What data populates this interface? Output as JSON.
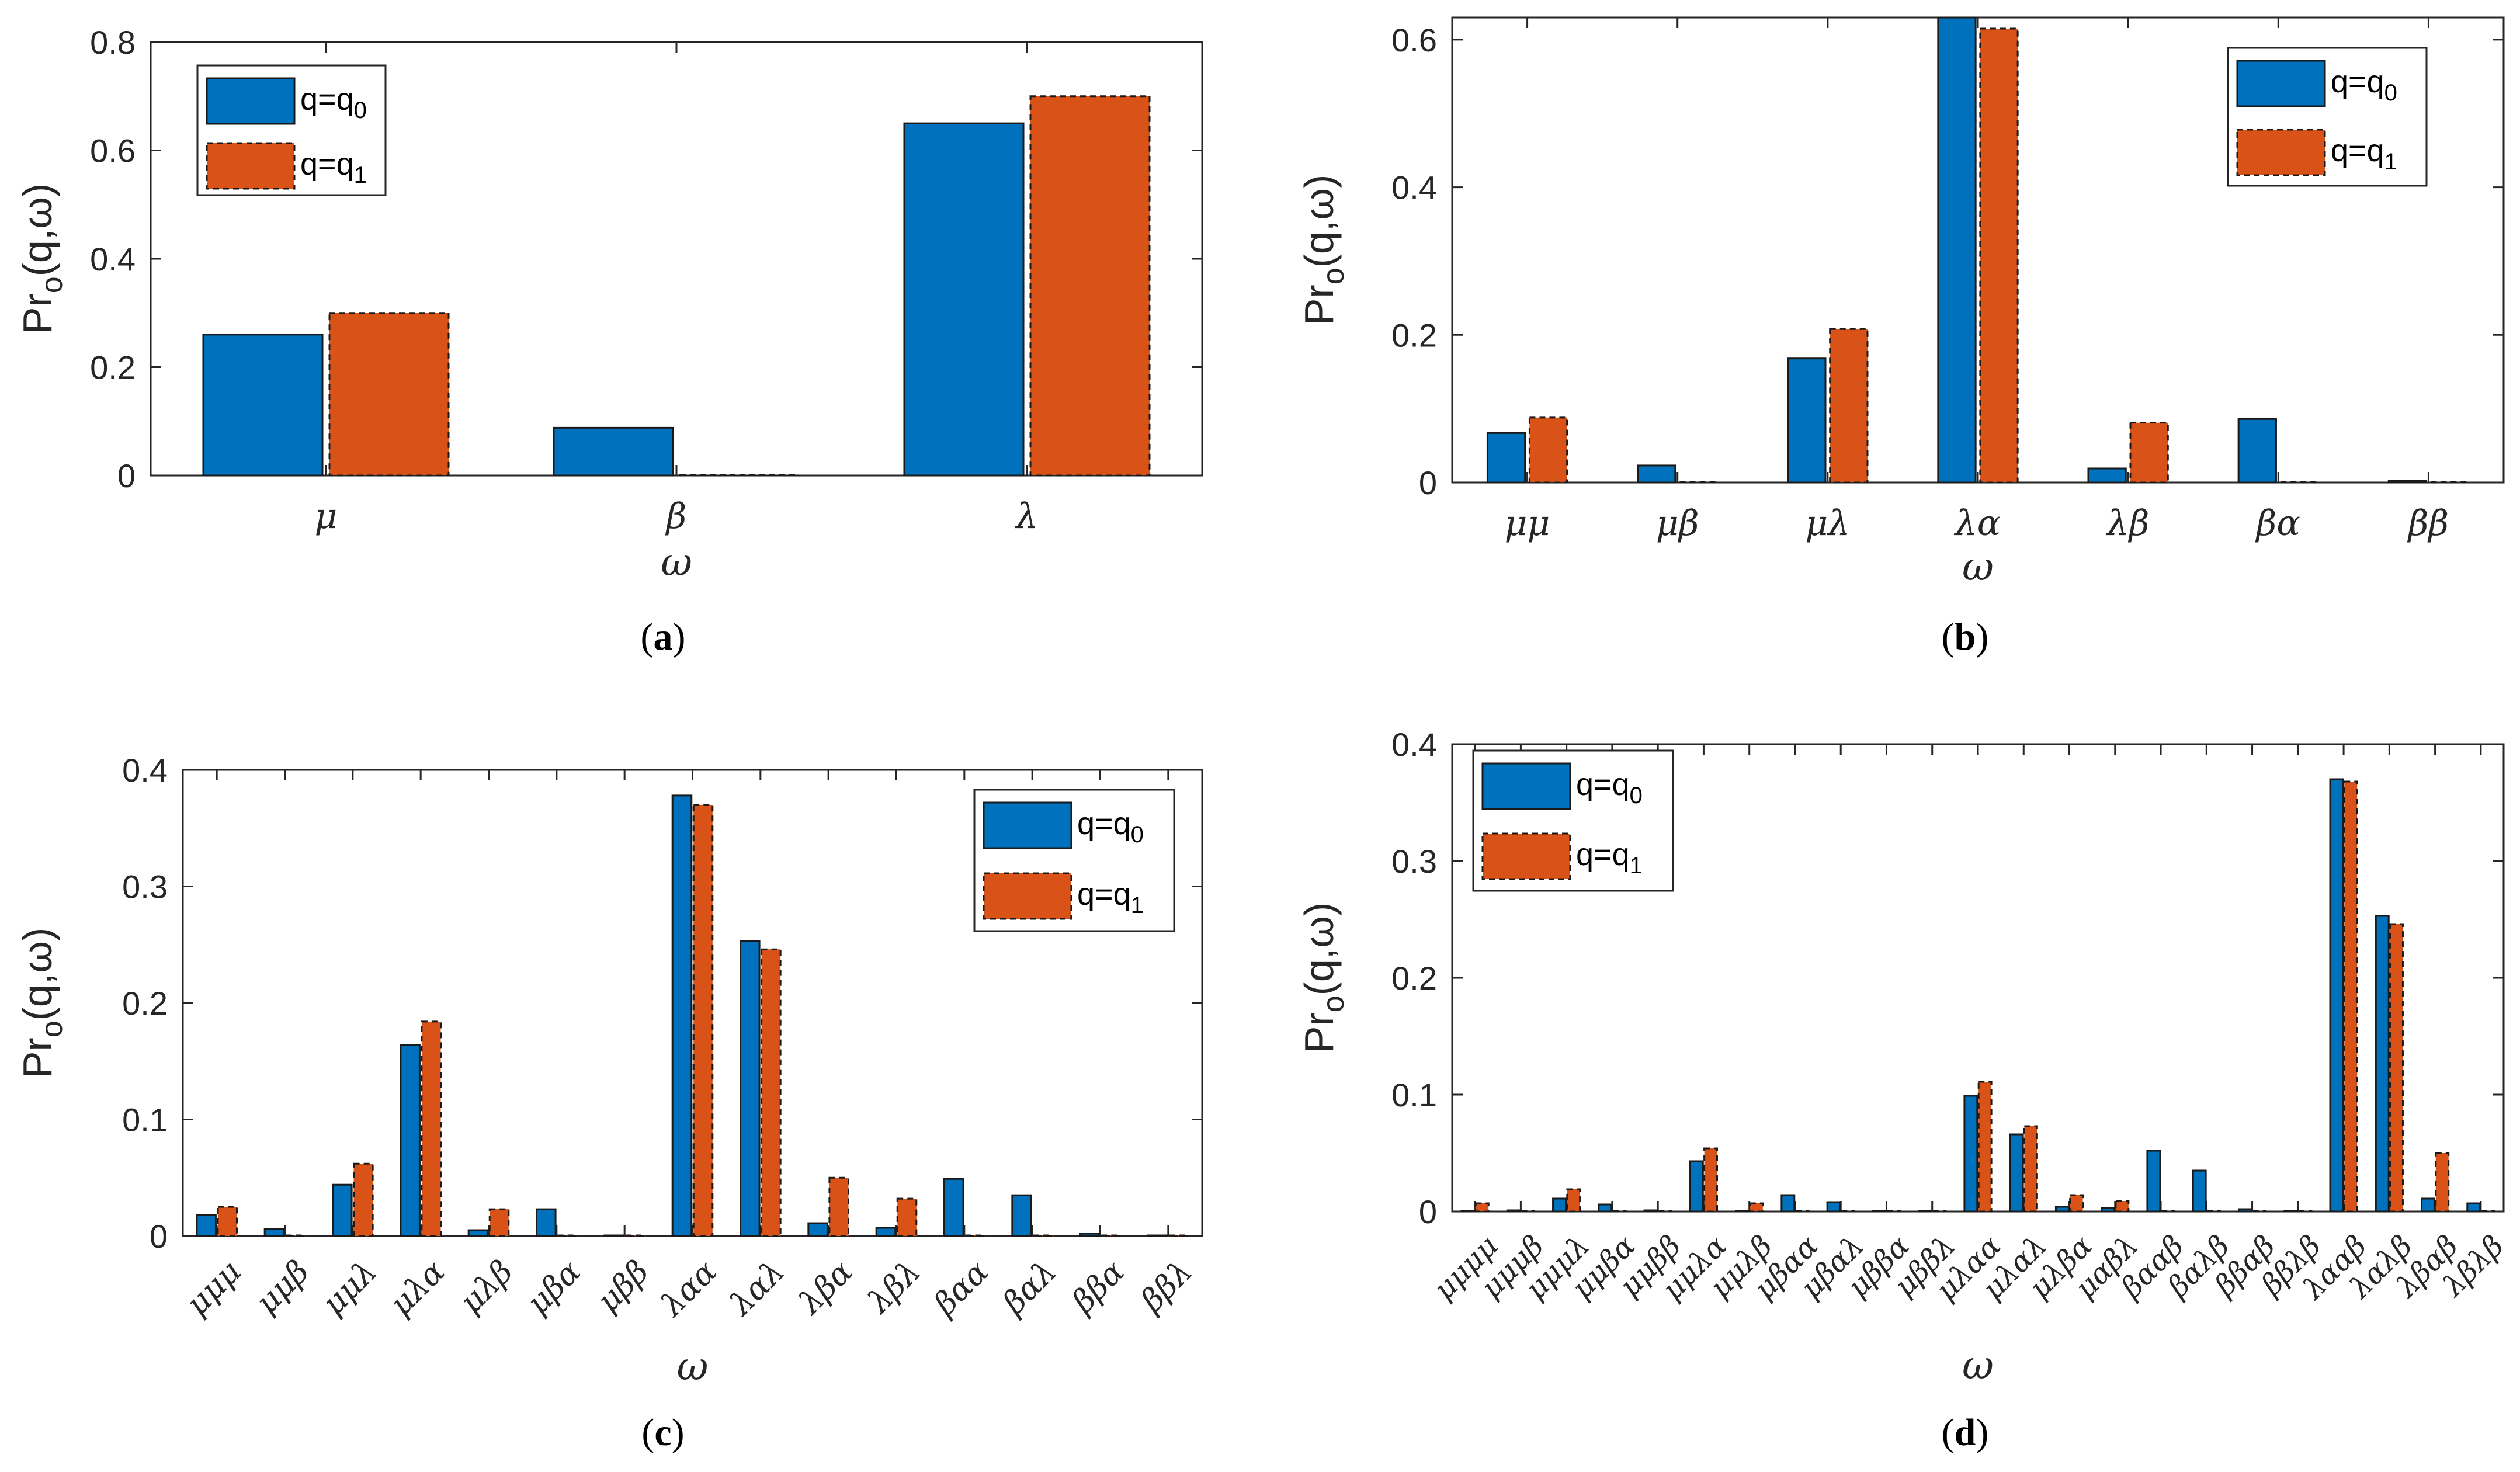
{
  "colors": {
    "series0": "#0072BD",
    "series1": "#D95319",
    "axis": "#262626"
  },
  "chart_data": [
    {
      "panel": "a",
      "type": "bar",
      "caption_letter": "a",
      "xlabel": "ω",
      "ylabel_main": "Pr",
      "ylabel_sub": "o",
      "ylabel_tail": "(q,ω)",
      "categories": [
        "μ",
        "β",
        "λ"
      ],
      "ylim": [
        0,
        0.8
      ],
      "yticks": [
        0,
        0.2,
        0.4,
        0.6,
        0.8
      ],
      "ytick_labels": [
        "0",
        "0.2",
        "0.4",
        "0.6",
        "0.8"
      ],
      "legend_position": "top-left",
      "series": [
        {
          "name": "q=q0",
          "name_main": "q=q",
          "name_sub": "0",
          "values": [
            0.26,
            0.088,
            0.65
          ]
        },
        {
          "name": "q=q1",
          "name_main": "q=q",
          "name_sub": "1",
          "values": [
            0.3,
            0.0,
            0.7
          ]
        }
      ]
    },
    {
      "panel": "b",
      "type": "bar",
      "caption_letter": "b",
      "xlabel": "ω",
      "ylabel_main": "Pr",
      "ylabel_sub": "o",
      "ylabel_tail": "(q,ω)",
      "categories": [
        "μμ",
        "μβ",
        "μλ",
        "λα",
        "λβ",
        "βα",
        "ββ"
      ],
      "ylim": [
        0,
        0.63
      ],
      "yticks": [
        0,
        0.2,
        0.4,
        0.6
      ],
      "ytick_labels": [
        "0",
        "0.2",
        "0.4",
        "0.6"
      ],
      "legend_position": "top-right",
      "series": [
        {
          "name": "q=q0",
          "name_main": "q=q",
          "name_sub": "0",
          "values": [
            0.067,
            0.023,
            0.168,
            0.63,
            0.019,
            0.086,
            0.002
          ]
        },
        {
          "name": "q=q1",
          "name_main": "q=q",
          "name_sub": "1",
          "values": [
            0.088,
            0.0,
            0.208,
            0.615,
            0.081,
            0.0,
            0.0
          ]
        }
      ]
    },
    {
      "panel": "c",
      "type": "bar",
      "caption_letter": "c",
      "xlabel": "ω",
      "ylabel_main": "Pr",
      "ylabel_sub": "o",
      "ylabel_tail": "(q,ω)",
      "categories": [
        "μμμ",
        "μμβ",
        "μμλ",
        "μλα",
        "μλβ",
        "μβα",
        "μββ",
        "λαα",
        "λαλ",
        "λβα",
        "λβλ",
        "βαα",
        "βαλ",
        "ββα",
        "ββλ"
      ],
      "ylim": [
        0,
        0.4
      ],
      "yticks": [
        0,
        0.1,
        0.2,
        0.3,
        0.4
      ],
      "ytick_labels": [
        "0",
        "0.1",
        "0.2",
        "0.3",
        "0.4"
      ],
      "legend_position": "top-right",
      "series": [
        {
          "name": "q=q0",
          "name_main": "q=q",
          "name_sub": "0",
          "values": [
            0.018,
            0.006,
            0.044,
            0.164,
            0.005,
            0.023,
            0.0,
            0.378,
            0.253,
            0.011,
            0.007,
            0.049,
            0.035,
            0.002,
            0.0
          ]
        },
        {
          "name": "q=q1",
          "name_main": "q=q",
          "name_sub": "1",
          "values": [
            0.025,
            0.0,
            0.062,
            0.184,
            0.023,
            0.0,
            0.0,
            0.37,
            0.246,
            0.05,
            0.032,
            0.0,
            0.0,
            0.0,
            0.0
          ]
        }
      ]
    },
    {
      "panel": "d",
      "type": "bar",
      "caption_letter": "d",
      "xlabel": "ω",
      "ylabel_main": "Pr",
      "ylabel_sub": "o",
      "ylabel_tail": "(q,ω)",
      "categories": [
        "μμμμ",
        "μμμβ",
        "μμμλ",
        "μμβα",
        "μμββ",
        "μμλα",
        "μμλβ",
        "μβαα",
        "μβαλ",
        "μββα",
        "μββλ",
        "μλαα",
        "μλαλ",
        "μλβα",
        "μαβλ",
        "βααβ",
        "βαλβ",
        "ββαβ",
        "ββλβ",
        "λααβ",
        "λαλβ",
        "λβαβ",
        "λβλβ"
      ],
      "ylim": [
        0,
        0.4
      ],
      "yticks": [
        0,
        0.1,
        0.2,
        0.3,
        0.4
      ],
      "ytick_labels": [
        "0",
        "0.1",
        "0.2",
        "0.3",
        "0.4"
      ],
      "legend_position": "top-left",
      "series": [
        {
          "name": "q=q0",
          "name_main": "q=q",
          "name_sub": "0",
          "values": [
            0.0,
            0.001,
            0.011,
            0.006,
            0.001,
            0.043,
            0.0,
            0.014,
            0.008,
            0.0,
            0.0,
            0.099,
            0.066,
            0.004,
            0.003,
            0.052,
            0.035,
            0.002,
            0.0,
            0.37,
            0.253,
            0.011,
            0.007
          ]
        },
        {
          "name": "q=q1",
          "name_main": "q=q",
          "name_sub": "1",
          "values": [
            0.007,
            0.0,
            0.019,
            0.0,
            0.0,
            0.054,
            0.007,
            0.0,
            0.0,
            0.0,
            0.0,
            0.111,
            0.073,
            0.014,
            0.009,
            0.0,
            0.0,
            0.0,
            0.0,
            0.368,
            0.246,
            0.05,
            0.0
          ]
        }
      ]
    }
  ]
}
